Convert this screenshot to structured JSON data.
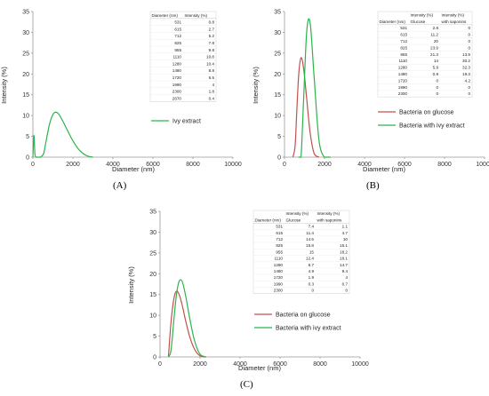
{
  "chart_data": [
    {
      "type": "line",
      "panel_label": "(A)",
      "xlabel": "Diameter (nm)",
      "ylabel": "Intensity (%)",
      "xlim": [
        0,
        10000
      ],
      "ylim": [
        0,
        35
      ],
      "xticks": [
        0,
        2000,
        4000,
        6000,
        8000,
        10000
      ],
      "yticks": [
        0,
        5,
        10,
        15,
        20,
        25,
        30,
        35
      ],
      "legend_position": "right",
      "series": [
        {
          "name": "Ivy extract",
          "color": "#2db34a",
          "x": [
            0,
            50,
            100,
            160,
            260,
            380,
            531,
            615,
            712,
            825,
            955,
            1110,
            1280,
            1480,
            1720,
            1990,
            2300,
            2670,
            3000
          ],
          "y": [
            0,
            5.2,
            0.8,
            0,
            0,
            0,
            0.8,
            2.7,
            5.2,
            7.8,
            9.8,
            10.8,
            10.4,
            8.8,
            6.5,
            4,
            1.8,
            0.4,
            0
          ]
        }
      ],
      "table": {
        "headers": [
          [
            "Diameter (nm)"
          ],
          [
            "Intensity (%)"
          ]
        ],
        "rows": [
          [
            "531",
            "0.8"
          ],
          [
            "615",
            "2.7"
          ],
          [
            "712",
            "5.2"
          ],
          [
            "825",
            "7.8"
          ],
          [
            "955",
            "9.8"
          ],
          [
            "1110",
            "10.8"
          ],
          [
            "1280",
            "10.4"
          ],
          [
            "1480",
            "8.8"
          ],
          [
            "1720",
            "6.5"
          ],
          [
            "1990",
            "4"
          ],
          [
            "2300",
            "1.8"
          ],
          [
            "2670",
            "0.4"
          ]
        ]
      }
    },
    {
      "type": "line",
      "panel_label": "(B)",
      "xlabel": "Diameter (nm)",
      "ylabel": "Intensity (%)",
      "xlim": [
        0,
        10000
      ],
      "ylim": [
        0,
        35
      ],
      "xticks": [
        0,
        2000,
        4000,
        6000,
        8000,
        10000
      ],
      "yticks": [
        0,
        5,
        10,
        15,
        20,
        25,
        30,
        35
      ],
      "legend_position": "right",
      "series": [
        {
          "name": "Bacteria on glucose",
          "color": "#c0504d",
          "x": [
            420,
            531,
            615,
            712,
            825,
            955,
            1110,
            1280,
            1480,
            1720
          ],
          "y": [
            0,
            2.8,
            11.2,
            20,
            23.9,
            21.3,
            14,
            5.9,
            0.9,
            0
          ]
        },
        {
          "name": "Bacteria with ivy extract",
          "color": "#2db34a",
          "x": [
            700,
            825,
            955,
            1110,
            1280,
            1480,
            1720,
            1990,
            2300
          ],
          "y": [
            0,
            0,
            13.9,
            30.2,
            32.3,
            19.3,
            4.2,
            0,
            0
          ]
        }
      ],
      "table": {
        "headers": [
          [
            "Diameter (nm)"
          ],
          [
            "Intensity (%)",
            "Glucose"
          ],
          [
            "Intensity (%)",
            "with saponins"
          ]
        ],
        "rows": [
          [
            "531",
            "2.8",
            "0"
          ],
          [
            "615",
            "11.2",
            "0"
          ],
          [
            "712",
            "20",
            "0"
          ],
          [
            "825",
            "23.9",
            "0"
          ],
          [
            "955",
            "21.3",
            "13.9"
          ],
          [
            "1110",
            "14",
            "30.2"
          ],
          [
            "1280",
            "5.9",
            "32.3"
          ],
          [
            "1480",
            "0.9",
            "19.3"
          ],
          [
            "1720",
            "0",
            "4.2"
          ],
          [
            "1990",
            "0",
            "0"
          ],
          [
            "2300",
            "0",
            "0"
          ]
        ]
      }
    },
    {
      "type": "line",
      "panel_label": "(C)",
      "xlabel": "Diameter (nm)",
      "ylabel": "Intensity (%)",
      "xlim": [
        0,
        10000
      ],
      "ylim": [
        0,
        35
      ],
      "xticks": [
        0,
        2000,
        4000,
        6000,
        8000,
        10000
      ],
      "yticks": [
        0,
        5,
        10,
        15,
        20,
        25,
        30,
        35
      ],
      "legend_position": "right",
      "series": [
        {
          "name": "Bacteria on glucose",
          "color": "#c0504d",
          "x": [
            420,
            531,
            615,
            712,
            825,
            955,
            1110,
            1280,
            1480,
            1720,
            1990,
            2300
          ],
          "y": [
            0,
            7.4,
            11.4,
            14.5,
            15.8,
            15,
            12.4,
            8.7,
            4.9,
            1.9,
            0.3,
            0
          ]
        },
        {
          "name": "Bacteria with ivy extract",
          "color": "#2db34a",
          "x": [
            420,
            531,
            615,
            712,
            825,
            955,
            1110,
            1280,
            1480,
            1720,
            1990,
            2300
          ],
          "y": [
            0,
            1.1,
            4.7,
            10,
            15.1,
            18.2,
            18.1,
            14.7,
            9.4,
            4,
            0.7,
            0
          ]
        }
      ],
      "table": {
        "headers": [
          [
            "Diameter (nm)"
          ],
          [
            "Intensity (%)",
            "Glucose"
          ],
          [
            "Intensity (%)",
            "with saponins"
          ]
        ],
        "rows": [
          [
            "531",
            "7.4",
            "1.1"
          ],
          [
            "615",
            "11.4",
            "4.7"
          ],
          [
            "712",
            "14.5",
            "10"
          ],
          [
            "825",
            "15.8",
            "15.1"
          ],
          [
            "955",
            "15",
            "18.2"
          ],
          [
            "1110",
            "12.4",
            "18.1"
          ],
          [
            "1280",
            "8.7",
            "14.7"
          ],
          [
            "1480",
            "4.9",
            "9.4"
          ],
          [
            "1720",
            "1.9",
            "4"
          ],
          [
            "1990",
            "0.3",
            "0.7"
          ],
          [
            "2300",
            "0",
            "0"
          ]
        ]
      }
    }
  ]
}
